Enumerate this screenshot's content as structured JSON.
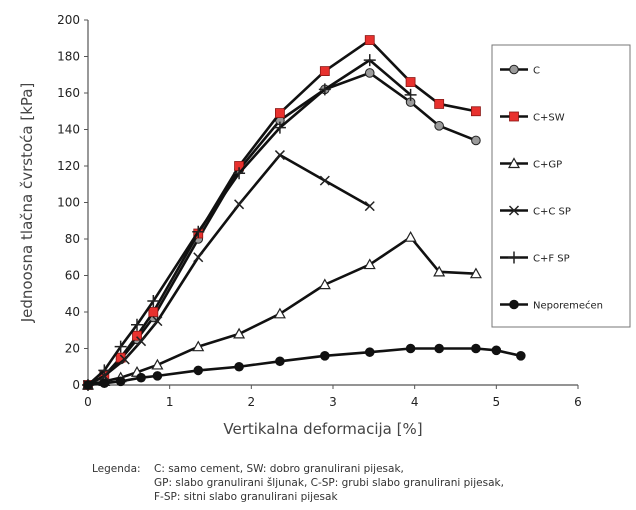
{
  "chart_data": {
    "type": "line",
    "title": "",
    "xlabel": "Vertikalna deformacija [%]",
    "ylabel": "Jednoosna tlačna čvrstoća [kPa]",
    "xlim": [
      0,
      6
    ],
    "ylim": [
      0,
      200
    ],
    "xticks": [
      "0",
      "1",
      "2",
      "3",
      "4",
      "5",
      "6"
    ],
    "yticks": [
      "0",
      "20",
      "40",
      "60",
      "80",
      "100",
      "120",
      "140",
      "160",
      "180",
      "200"
    ],
    "grid": false,
    "legend_position": "right",
    "series": [
      {
        "name": "C",
        "marker": "circle-grey",
        "x": [
          0,
          0.2,
          0.4,
          0.6,
          0.8,
          1.35,
          1.85,
          2.35,
          2.9,
          3.45,
          3.95,
          4.3,
          4.75
        ],
        "y": [
          0,
          5,
          14,
          25,
          37,
          80,
          118,
          145,
          162,
          171,
          155,
          142,
          134
        ]
      },
      {
        "name": "C+SW",
        "marker": "square-red",
        "x": [
          0,
          0.2,
          0.4,
          0.6,
          0.8,
          1.35,
          1.85,
          2.35,
          2.9,
          3.45,
          3.95,
          4.3,
          4.75
        ],
        "y": [
          0,
          5,
          15,
          27,
          40,
          83,
          120,
          149,
          172,
          189,
          166,
          154,
          150
        ]
      },
      {
        "name": "C+GP",
        "marker": "triangle-open",
        "x": [
          0,
          0.2,
          0.4,
          0.6,
          0.85,
          1.35,
          1.85,
          2.35,
          2.9,
          3.45,
          3.95,
          4.3,
          4.75
        ],
        "y": [
          0,
          2,
          4,
          7,
          11,
          21,
          28,
          39,
          55,
          66,
          81,
          62,
          61
        ]
      },
      {
        "name": "C+C SP",
        "marker": "x",
        "x": [
          0,
          0.2,
          0.45,
          0.65,
          0.85,
          1.35,
          1.85,
          2.35,
          2.9,
          3.45
        ],
        "y": [
          0,
          5,
          14,
          24,
          35,
          70,
          99,
          126,
          112,
          98
        ]
      },
      {
        "name": "C+F SP",
        "marker": "plus",
        "x": [
          0,
          0.2,
          0.4,
          0.6,
          0.8,
          1.35,
          1.85,
          2.35,
          2.9,
          3.45,
          3.95
        ],
        "y": [
          0,
          8,
          21,
          33,
          46,
          84,
          116,
          141,
          162,
          178,
          159
        ]
      },
      {
        "name": "Neporemećen",
        "marker": "circle-black",
        "x": [
          0,
          0.2,
          0.4,
          0.65,
          0.85,
          1.35,
          1.85,
          2.35,
          2.9,
          3.45,
          3.95,
          4.3,
          4.75,
          5.0,
          5.3
        ],
        "y": [
          0,
          1,
          2,
          4,
          5,
          8,
          10,
          13,
          16,
          18,
          20,
          20,
          20,
          19,
          16
        ]
      }
    ]
  },
  "legend_note": {
    "label": "Legenda:",
    "lines": [
      "C: samo cement, SW: dobro granulirani pijesak,",
      "GP: slabo granulirani šljunak, C-SP: grubi slabo granulirani pijesak,",
      "F-SP: sitni slabo granulirani pijesak"
    ]
  }
}
